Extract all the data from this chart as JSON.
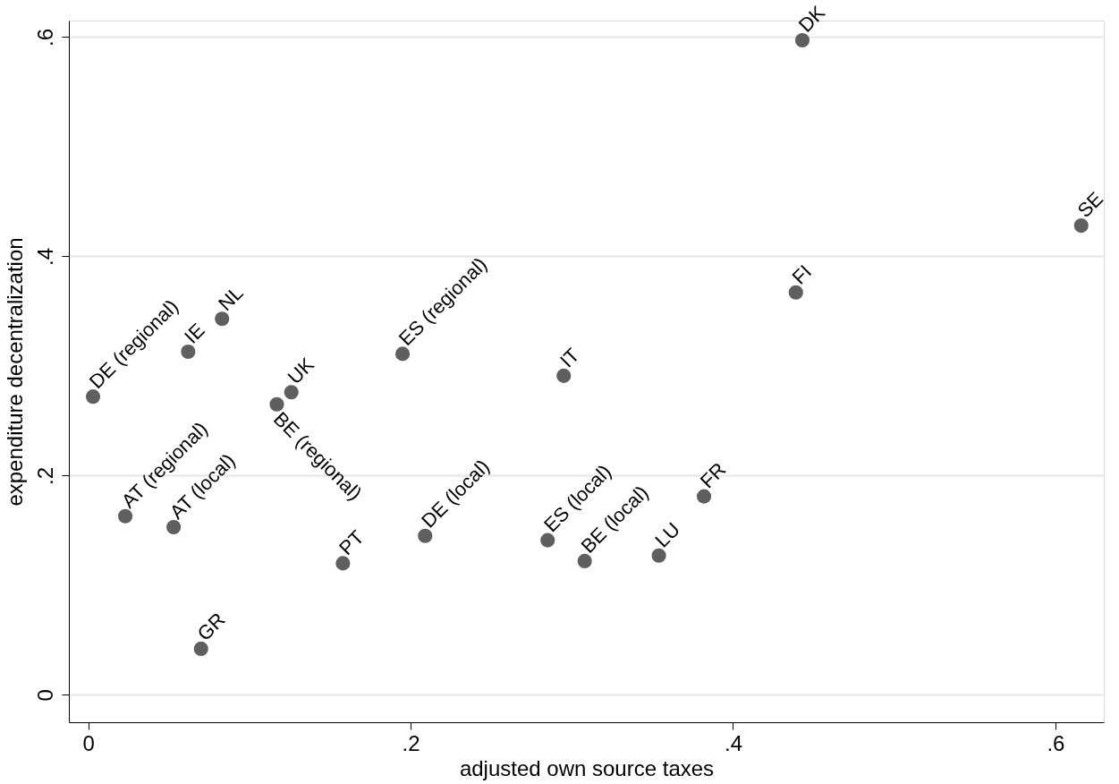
{
  "chart_data": {
    "type": "scatter",
    "xlabel": "adjusted own source taxes",
    "ylabel": "expenditure decentralization",
    "x": [
      0.443,
      0.616,
      0.439,
      0.382,
      0.003,
      0.062,
      0.083,
      0.117,
      0.126,
      0.195,
      0.295,
      0.023,
      0.053,
      0.07,
      0.158,
      0.209,
      0.285,
      0.308,
      0.354
    ],
    "series": [
      {
        "color": "#5f5f5f",
        "values": [
          0.597,
          0.428,
          0.367,
          0.181,
          0.272,
          0.313,
          0.343,
          0.265,
          0.276,
          0.311,
          0.291,
          0.163,
          0.153,
          0.042,
          0.12,
          0.145,
          0.141,
          0.122,
          0.127
        ]
      }
    ],
    "annotations": [
      {
        "text": "DK",
        "x": 0.443,
        "y": 0.597
      },
      {
        "text": "SE",
        "x": 0.616,
        "y": 0.428
      },
      {
        "text": "FI",
        "x": 0.439,
        "y": 0.367
      },
      {
        "text": "FR",
        "x": 0.382,
        "y": 0.181
      },
      {
        "text": "DE (regional)",
        "x": 0.003,
        "y": 0.272
      },
      {
        "text": "IE",
        "x": 0.062,
        "y": 0.313
      },
      {
        "text": "NL",
        "x": 0.083,
        "y": 0.343
      },
      {
        "text": "BE (regional)",
        "x": 0.117,
        "y": 0.265
      },
      {
        "text": "UK",
        "x": 0.126,
        "y": 0.276
      },
      {
        "text": "ES (regional)",
        "x": 0.195,
        "y": 0.311
      },
      {
        "text": "IT",
        "x": 0.295,
        "y": 0.291
      },
      {
        "text": "AT (regional)",
        "x": 0.023,
        "y": 0.163
      },
      {
        "text": "AT (local)",
        "x": 0.053,
        "y": 0.153
      },
      {
        "text": "GR",
        "x": 0.07,
        "y": 0.042
      },
      {
        "text": "PT",
        "x": 0.158,
        "y": 0.12
      },
      {
        "text": "DE (local)",
        "x": 0.209,
        "y": 0.145
      },
      {
        "text": "ES (local)",
        "x": 0.285,
        "y": 0.141
      },
      {
        "text": "BE (local)",
        "x": 0.308,
        "y": 0.122
      },
      {
        "text": "LU",
        "x": 0.354,
        "y": 0.127
      }
    ],
    "xlim": [
      -0.012,
      0.63
    ],
    "ylim": [
      -0.025,
      0.615
    ],
    "xticks": [
      0,
      {
        "value": 0.2,
        "label": ".2"
      },
      {
        "value": 0.4,
        "label": ".4"
      },
      {
        "value": 0.6,
        "label": ".6"
      }
    ],
    "yticks": [
      0,
      {
        "value": 0.2,
        "label": ".2"
      },
      {
        "value": 0.4,
        "label": ".4"
      },
      {
        "value": 0.6,
        "label": ".6"
      }
    ],
    "grid": "y",
    "marker": "circle"
  }
}
